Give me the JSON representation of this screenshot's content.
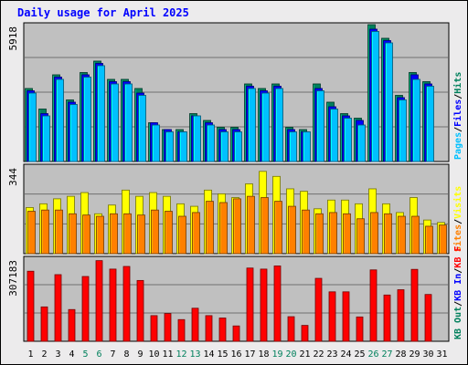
{
  "title": "Daily usage for April 2025",
  "chart_data": [
    {
      "type": "bar",
      "panel": "hits-files-pages",
      "axis_max_label": "5918",
      "ylim": [
        0,
        5918
      ],
      "grid": true,
      "categories": [
        "1",
        "2",
        "3",
        "4",
        "5",
        "6",
        "7",
        "8",
        "9",
        "10",
        "11",
        "12",
        "13",
        "14",
        "15",
        "16",
        "17",
        "18",
        "19",
        "20",
        "21",
        "22",
        "23",
        "24",
        "25",
        "26",
        "27",
        "28",
        "29",
        "30",
        "31"
      ],
      "legend": [
        {
          "label": "Hits",
          "color": "#00805c"
        },
        {
          "label": "Files",
          "color": "#0000ff"
        },
        {
          "label": "Pages",
          "color": "#00c0ff"
        }
      ],
      "series": [
        {
          "name": "Hits",
          "color": "#00805c",
          "values": [
            3200,
            2300,
            3800,
            2700,
            3900,
            4400,
            3600,
            3600,
            3200,
            1700,
            1400,
            1400,
            2100,
            1800,
            1500,
            1500,
            3400,
            3200,
            3400,
            1500,
            1400,
            3400,
            2600,
            2100,
            1900,
            6000,
            5400,
            2900,
            3900,
            3500,
            0
          ]
        },
        {
          "name": "Files",
          "color": "#0000ff",
          "values": [
            3100,
            2100,
            3700,
            2600,
            3800,
            4300,
            3500,
            3500,
            3000,
            1700,
            1400,
            1300,
            2000,
            1700,
            1400,
            1400,
            3300,
            3100,
            3300,
            1400,
            1300,
            3200,
            2400,
            2000,
            1800,
            5800,
            5300,
            2800,
            3800,
            3400,
            0
          ]
        },
        {
          "name": "Pages",
          "color": "#00c0ff",
          "values": [
            3000,
            2000,
            3600,
            2500,
            3700,
            4200,
            3400,
            3400,
            2900,
            1600,
            1300,
            1300,
            2000,
            1600,
            1300,
            1300,
            3200,
            3000,
            3200,
            1300,
            1300,
            3100,
            2300,
            1900,
            1600,
            5700,
            5200,
            2700,
            3600,
            3300,
            0
          ]
        }
      ]
    },
    {
      "type": "bar",
      "panel": "visits-sites",
      "axis_max_label": "344",
      "ylim": [
        0,
        344
      ],
      "grid": true,
      "categories": [
        "1",
        "2",
        "3",
        "4",
        "5",
        "6",
        "7",
        "8",
        "9",
        "10",
        "11",
        "12",
        "13",
        "14",
        "15",
        "16",
        "17",
        "18",
        "19",
        "20",
        "21",
        "22",
        "23",
        "24",
        "25",
        "26",
        "27",
        "28",
        "29",
        "30",
        "31"
      ],
      "legend": [
        {
          "label": "Visits",
          "color": "#ffff00"
        },
        {
          "label": "Sites",
          "color": "#ff8000"
        }
      ],
      "series": [
        {
          "name": "Visits",
          "color": "#ffff00",
          "values": [
            185,
            200,
            220,
            230,
            245,
            160,
            195,
            255,
            230,
            245,
            230,
            200,
            190,
            255,
            240,
            225,
            280,
            330,
            310,
            260,
            250,
            180,
            215,
            215,
            200,
            260,
            200,
            165,
            225,
            135,
            125
          ]
        },
        {
          "name": "Sites",
          "color": "#ff8000",
          "values": [
            170,
            175,
            175,
            160,
            155,
            150,
            160,
            160,
            155,
            175,
            170,
            150,
            165,
            210,
            205,
            220,
            230,
            225,
            210,
            190,
            175,
            160,
            165,
            160,
            140,
            165,
            160,
            150,
            150,
            110,
            115
          ]
        }
      ]
    },
    {
      "type": "bar",
      "panel": "kbytes",
      "axis_max_label": "307183",
      "ylim": [
        0,
        307183
      ],
      "grid": true,
      "categories": [
        "1",
        "2",
        "3",
        "4",
        "5",
        "6",
        "7",
        "8",
        "9",
        "10",
        "11",
        "12",
        "13",
        "14",
        "15",
        "16",
        "17",
        "18",
        "19",
        "20",
        "21",
        "22",
        "23",
        "24",
        "25",
        "26",
        "27",
        "28",
        "29",
        "30",
        "31"
      ],
      "legend": [
        {
          "label": "KB F",
          "color": "#ff0000"
        },
        {
          "label": "KB In",
          "color": "#0000ff"
        },
        {
          "label": "KB Out",
          "color": "#00805c"
        }
      ],
      "series": [
        {
          "name": "KB F",
          "color": "#ff0000",
          "values": [
            265000,
            130000,
            252000,
            120000,
            245000,
            305000,
            273000,
            283000,
            230000,
            97000,
            105000,
            82000,
            125000,
            97000,
            88000,
            58000,
            277000,
            273000,
            285000,
            93000,
            60000,
            238000,
            187000,
            187000,
            92000,
            270000,
            175000,
            195000,
            272000,
            177000,
            0
          ]
        }
      ]
    }
  ],
  "x_axis": {
    "labels": [
      "1",
      "2",
      "3",
      "4",
      "5",
      "6",
      "7",
      "8",
      "9",
      "10",
      "11",
      "12",
      "13",
      "14",
      "15",
      "16",
      "17",
      "18",
      "19",
      "20",
      "21",
      "22",
      "23",
      "24",
      "25",
      "26",
      "27",
      "28",
      "29",
      "30",
      "31"
    ],
    "weekend_days": [
      "5",
      "6",
      "12",
      "13",
      "19",
      "20",
      "26",
      "27"
    ],
    "weekday_color": "#000000",
    "weekend_color": "#00805c"
  }
}
